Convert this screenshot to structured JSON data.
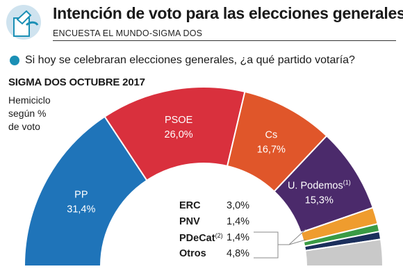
{
  "header": {
    "title": "Intención de voto para las elecciones generales",
    "subtitle": "ENCUESTA EL MUNDO-SIGMA DOS",
    "question": "Si hoy se celebraran elecciones generales, ¿a qué partido votaría?",
    "survey": "SIGMA DOS OCTUBRE 2017",
    "note_lines": [
      "Hemiciclo",
      "según %",
      "de voto"
    ]
  },
  "colors": {
    "PP": "#1f74b9",
    "PSOE": "#d9303d",
    "Cs": "#e0562a",
    "U. Podemos": "#4b2a6b",
    "ERC": "#ef9c2e",
    "PNV": "#3a9b45",
    "PDeCat": "#1b2f5c",
    "Otros": "#c9c9c9",
    "accent_dot": "#1a8fb5"
  },
  "chart_data": {
    "type": "pie",
    "style": "hemicycle",
    "title": "Intención de voto para las elecciones generales",
    "subtitle": "Hemiciclo según % de voto",
    "series": [
      {
        "name": "PP",
        "value": 31.4,
        "display": "31,4%",
        "label": "PP"
      },
      {
        "name": "PSOE",
        "value": 26.0,
        "display": "26,0%",
        "label": "PSOE"
      },
      {
        "name": "Cs",
        "value": 16.7,
        "display": "16,7%",
        "label": "Cs"
      },
      {
        "name": "U. Podemos",
        "value": 15.3,
        "display": "15,3%",
        "label": "U. Podemos",
        "note": "(1)"
      },
      {
        "name": "ERC",
        "value": 3.0,
        "display": "3,0%",
        "label": "ERC"
      },
      {
        "name": "PNV",
        "value": 1.4,
        "display": "1,4%",
        "label": "PNV"
      },
      {
        "name": "PDeCat",
        "value": 1.4,
        "display": "1,4%",
        "label": "PDeCat",
        "note": "(2)"
      },
      {
        "name": "Otros",
        "value": 4.8,
        "display": "4,8%",
        "label": "Otros"
      }
    ]
  }
}
